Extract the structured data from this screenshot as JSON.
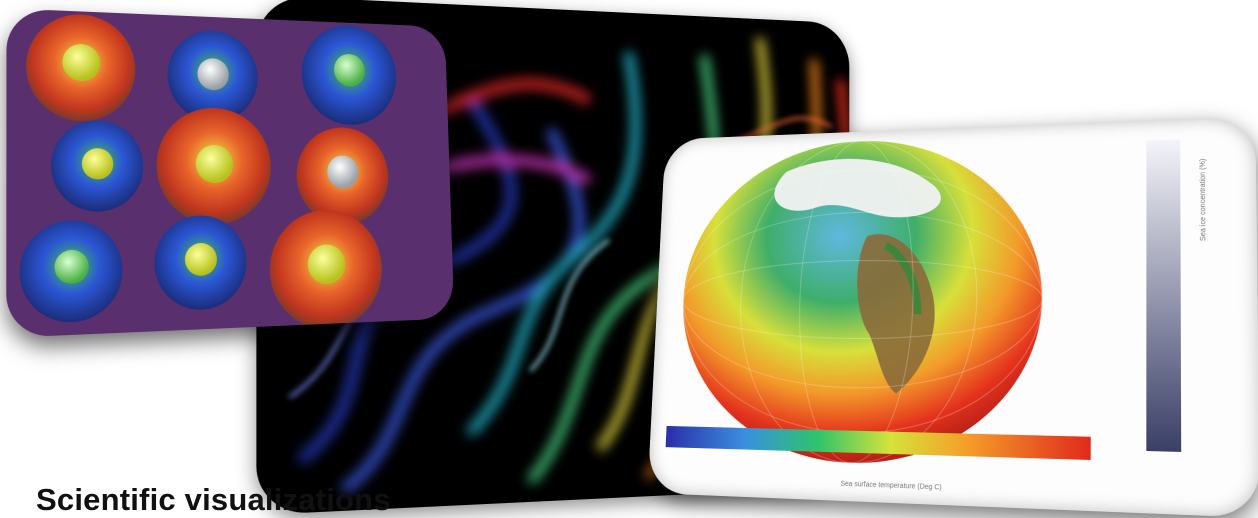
{
  "caption": "Scientific visualizations",
  "panels": [
    {
      "name": "molecule-panel",
      "icon": "molecule-clusters"
    },
    {
      "name": "smoke-panel",
      "icon": "colored-smoke-plumes"
    },
    {
      "name": "globe-panel",
      "icon": "temperature-globe"
    }
  ],
  "globe": {
    "colorbar_label": "Sea surface temperature (Deg C)",
    "vertical_bar_label": "Sea ice concentration (%)"
  },
  "colors": {
    "molecule_bg": "#5a2f6e",
    "smoke_bg": "#000000",
    "globe_card_bg": "#fdfdfd",
    "caption": "#111111"
  }
}
